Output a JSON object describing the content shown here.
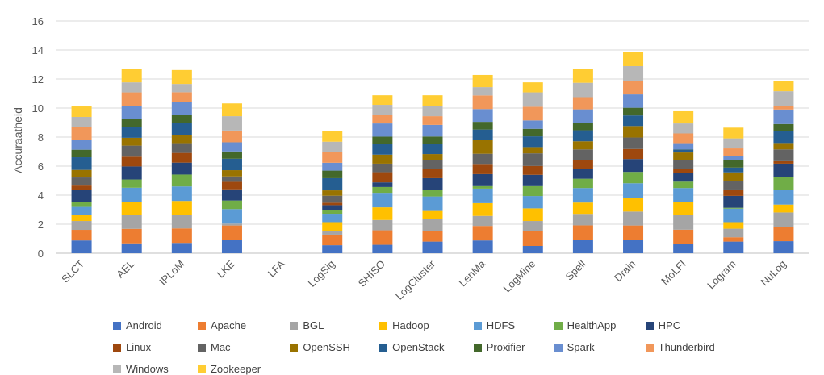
{
  "chart_data": {
    "type": "bar",
    "stacked": true,
    "title": "",
    "xlabel": "",
    "ylabel": "Accuraatheid",
    "ylim": [
      0,
      16
    ],
    "yticks": [
      0,
      2,
      4,
      6,
      8,
      10,
      12,
      14,
      16
    ],
    "grid": true,
    "legend_position": "bottom",
    "categories": [
      "SLCT",
      "AEL",
      "IPLoM",
      "LKE",
      "LFA",
      "LogSig",
      "SHISO",
      "LogCluster",
      "LenMa",
      "LogMine",
      "Spell",
      "Drain",
      "MoLFI",
      "Logram",
      "NuLog"
    ],
    "series": [
      {
        "name": "Android",
        "color": "#4472C4",
        "values": [
          0.88,
          0.68,
          0.71,
          0.91,
          0,
          0.55,
          0.58,
          0.8,
          0.88,
          0.5,
          0.92,
          0.91,
          0.62,
          0.8,
          0.83
        ]
      },
      {
        "name": "Apache",
        "color": "#ED7D31",
        "values": [
          0.73,
          1.0,
          1.0,
          1.0,
          0,
          0.73,
          1.0,
          0.71,
          1.0,
          1.0,
          1.0,
          1.0,
          1.0,
          0.3,
          1.0
        ]
      },
      {
        "name": "BGL",
        "color": "#A5A5A5",
        "values": [
          0.61,
          0.96,
          0.94,
          0.13,
          0,
          0.23,
          0.71,
          0.84,
          0.69,
          0.72,
          0.79,
          0.96,
          1.0,
          0.59,
          0.98
        ]
      },
      {
        "name": "Hadoop",
        "color": "#FFC000",
        "values": [
          0.42,
          0.87,
          0.95,
          0,
          0,
          0.63,
          0.87,
          0.56,
          0.88,
          0.87,
          0.78,
          0.95,
          0.9,
          0.45,
          0.54
        ]
      },
      {
        "name": "HDFS",
        "color": "#5B9BD5",
        "values": [
          0.55,
          1.0,
          1.0,
          1.0,
          0,
          0.58,
          1.0,
          1.0,
          1.0,
          0.85,
          1.0,
          1.0,
          0.97,
          0.93,
          1.0
        ]
      },
      {
        "name": "HealthApp",
        "color": "#70AD47",
        "values": [
          0.33,
          0.57,
          0.82,
          0.59,
          0,
          0.24,
          0.4,
          0.47,
          0.17,
          0.68,
          0.64,
          0.78,
          0.44,
          0.06,
          0.88
        ]
      },
      {
        "name": "HPC",
        "color": "#264478",
        "values": [
          0.84,
          0.9,
          0.82,
          0.77,
          0,
          0.35,
          0.32,
          0.79,
          0.83,
          0.78,
          0.65,
          0.89,
          0.58,
          0.82,
          0.94
        ]
      },
      {
        "name": "Linux",
        "color": "#9E480E",
        "values": [
          0.3,
          0.67,
          0.67,
          0.52,
          0,
          0.17,
          0.7,
          0.63,
          0.7,
          0.61,
          0.61,
          0.69,
          0.28,
          0.44,
          0.17
        ]
      },
      {
        "name": "Mac",
        "color": "#636363",
        "values": [
          0.56,
          0.76,
          0.67,
          0.37,
          0,
          0.48,
          0.59,
          0.6,
          0.7,
          0.87,
          0.76,
          0.79,
          0.64,
          0.57,
          0.81
        ]
      },
      {
        "name": "OpenSSH",
        "color": "#997300",
        "values": [
          0.52,
          0.54,
          0.54,
          0.43,
          0,
          0.37,
          0.62,
          0.43,
          0.93,
          0.43,
          0.56,
          0.79,
          0.51,
          0.61,
          0.44
        ]
      },
      {
        "name": "OpenStack",
        "color": "#255E91",
        "values": [
          0.87,
          0.76,
          0.87,
          0.79,
          0,
          0.84,
          0.72,
          0.69,
          0.74,
          0.74,
          0.76,
          0.73,
          0.21,
          0.33,
          0.81
        ]
      },
      {
        "name": "Proxifier",
        "color": "#43682B",
        "values": [
          0.52,
          0.52,
          0.52,
          0.5,
          0,
          0.52,
          0.52,
          0.52,
          0.53,
          0.52,
          0.53,
          0.53,
          0.01,
          0.5,
          0.5
        ]
      },
      {
        "name": "Spark",
        "color": "#698ED0",
        "values": [
          0.68,
          0.91,
          0.92,
          0.63,
          0,
          0.54,
          0.91,
          0.8,
          0.88,
          0.58,
          0.91,
          0.92,
          0.42,
          0.28,
          1.0
        ]
      },
      {
        "name": "Thunderbird",
        "color": "#F1975A",
        "values": [
          0.88,
          0.94,
          0.66,
          0.81,
          0,
          0.76,
          0.58,
          0.6,
          0.94,
          0.94,
          0.84,
          0.95,
          0.67,
          0.54,
          0.26
        ]
      },
      {
        "name": "Windows",
        "color": "#B7B7B7",
        "values": [
          0.7,
          0.69,
          0.57,
          0.99,
          0,
          0.69,
          0.7,
          0.71,
          0.57,
          0.99,
          0.99,
          1.0,
          0.69,
          0.69,
          1.0
        ]
      },
      {
        "name": "Zookeeper",
        "color": "#FFCD33",
        "values": [
          0.72,
          0.92,
          0.96,
          0.88,
          0,
          0.74,
          0.66,
          0.73,
          0.84,
          0.69,
          0.96,
          0.97,
          0.84,
          0.74,
          0.72
        ]
      }
    ]
  }
}
